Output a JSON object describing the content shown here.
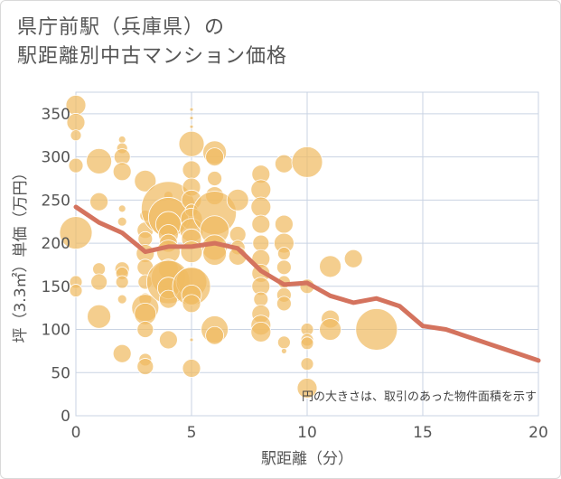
{
  "title_lines": [
    "県庁前駅（兵庫県）の",
    "駅距離別中古マンション価格"
  ],
  "colors": {
    "bubble": "#f0bb63",
    "line": "#d4735e",
    "grid": "#c9d3e3",
    "plot_bg": "#ffffff"
  },
  "chart_data": {
    "type": "scatter",
    "xlabel": "駅距離（分）",
    "ylabel": "坪（3.3㎡）単価（万円）",
    "xlim": [
      0,
      20
    ],
    "ylim": [
      0,
      375
    ],
    "xticks": [
      0,
      5,
      10,
      15,
      20
    ],
    "yticks": [
      0,
      50,
      100,
      150,
      200,
      250,
      300,
      350
    ],
    "grid": true,
    "note": "円の大きさは、取引のあった物件面積を示す",
    "bubbles": [
      {
        "x": 0,
        "y": 360,
        "r": 11
      },
      {
        "x": 0,
        "y": 340,
        "r": 10
      },
      {
        "x": 0,
        "y": 325,
        "r": 6
      },
      {
        "x": 0,
        "y": 290,
        "r": 8
      },
      {
        "x": 0,
        "y": 212,
        "r": 18
      },
      {
        "x": 0,
        "y": 155,
        "r": 7
      },
      {
        "x": 0,
        "y": 145,
        "r": 7
      },
      {
        "x": 1,
        "y": 295,
        "r": 14
      },
      {
        "x": 1,
        "y": 248,
        "r": 10
      },
      {
        "x": 1,
        "y": 170,
        "r": 7
      },
      {
        "x": 1,
        "y": 155,
        "r": 9
      },
      {
        "x": 1,
        "y": 115,
        "r": 13
      },
      {
        "x": 2,
        "y": 320,
        "r": 4
      },
      {
        "x": 2,
        "y": 310,
        "r": 6
      },
      {
        "x": 2,
        "y": 300,
        "r": 9
      },
      {
        "x": 2,
        "y": 283,
        "r": 10
      },
      {
        "x": 2,
        "y": 240,
        "r": 4
      },
      {
        "x": 2,
        "y": 225,
        "r": 5
      },
      {
        "x": 2,
        "y": 170,
        "r": 8
      },
      {
        "x": 2,
        "y": 165,
        "r": 7
      },
      {
        "x": 2,
        "y": 155,
        "r": 7
      },
      {
        "x": 2,
        "y": 135,
        "r": 5
      },
      {
        "x": 2,
        "y": 72,
        "r": 10
      },
      {
        "x": 3,
        "y": 272,
        "r": 12
      },
      {
        "x": 3,
        "y": 232,
        "r": 6
      },
      {
        "x": 3,
        "y": 215,
        "r": 9
      },
      {
        "x": 3,
        "y": 205,
        "r": 8
      },
      {
        "x": 3,
        "y": 188,
        "r": 10
      },
      {
        "x": 3,
        "y": 172,
        "r": 9
      },
      {
        "x": 3,
        "y": 155,
        "r": 8
      },
      {
        "x": 3,
        "y": 135,
        "r": 7
      },
      {
        "x": 3,
        "y": 125,
        "r": 15
      },
      {
        "x": 3,
        "y": 118,
        "r": 12
      },
      {
        "x": 3,
        "y": 100,
        "r": 9
      },
      {
        "x": 3,
        "y": 65,
        "r": 7
      },
      {
        "x": 3,
        "y": 57,
        "r": 9
      },
      {
        "x": 4,
        "y": 255,
        "r": 5
      },
      {
        "x": 4,
        "y": 240,
        "r": 30
      },
      {
        "x": 4,
        "y": 230,
        "r": 22
      },
      {
        "x": 4,
        "y": 222,
        "r": 14
      },
      {
        "x": 4,
        "y": 210,
        "r": 11
      },
      {
        "x": 4,
        "y": 200,
        "r": 10
      },
      {
        "x": 4,
        "y": 190,
        "r": 13
      },
      {
        "x": 4,
        "y": 170,
        "r": 11
      },
      {
        "x": 4,
        "y": 160,
        "r": 19
      },
      {
        "x": 4,
        "y": 155,
        "r": 24
      },
      {
        "x": 4,
        "y": 148,
        "r": 12
      },
      {
        "x": 4,
        "y": 135,
        "r": 10
      },
      {
        "x": 4,
        "y": 88,
        "r": 10
      },
      {
        "x": 5,
        "y": 355,
        "r": 2
      },
      {
        "x": 5,
        "y": 345,
        "r": 2
      },
      {
        "x": 5,
        "y": 335,
        "r": 2
      },
      {
        "x": 5,
        "y": 315,
        "r": 14
      },
      {
        "x": 5,
        "y": 285,
        "r": 10
      },
      {
        "x": 5,
        "y": 265,
        "r": 10
      },
      {
        "x": 5,
        "y": 250,
        "r": 11
      },
      {
        "x": 5,
        "y": 238,
        "r": 7
      },
      {
        "x": 5,
        "y": 228,
        "r": 12
      },
      {
        "x": 5,
        "y": 215,
        "r": 13
      },
      {
        "x": 5,
        "y": 205,
        "r": 11
      },
      {
        "x": 5,
        "y": 190,
        "r": 12
      },
      {
        "x": 5,
        "y": 155,
        "r": 17
      },
      {
        "x": 5,
        "y": 150,
        "r": 21
      },
      {
        "x": 5,
        "y": 140,
        "r": 11
      },
      {
        "x": 5,
        "y": 130,
        "r": 10
      },
      {
        "x": 5,
        "y": 88,
        "r": 2
      },
      {
        "x": 5,
        "y": 55,
        "r": 10
      },
      {
        "x": 6,
        "y": 305,
        "r": 13
      },
      {
        "x": 6,
        "y": 300,
        "r": 10
      },
      {
        "x": 6,
        "y": 275,
        "r": 8
      },
      {
        "x": 6,
        "y": 255,
        "r": 10
      },
      {
        "x": 6,
        "y": 235,
        "r": 24
      },
      {
        "x": 6,
        "y": 215,
        "r": 16
      },
      {
        "x": 6,
        "y": 195,
        "r": 14
      },
      {
        "x": 6,
        "y": 188,
        "r": 13
      },
      {
        "x": 6,
        "y": 100,
        "r": 15
      },
      {
        "x": 6,
        "y": 93,
        "r": 10
      },
      {
        "x": 7,
        "y": 250,
        "r": 12
      },
      {
        "x": 7,
        "y": 210,
        "r": 9
      },
      {
        "x": 7,
        "y": 195,
        "r": 8
      },
      {
        "x": 7,
        "y": 185,
        "r": 10
      },
      {
        "x": 8,
        "y": 280,
        "r": 10
      },
      {
        "x": 8,
        "y": 262,
        "r": 11
      },
      {
        "x": 8,
        "y": 242,
        "r": 11
      },
      {
        "x": 8,
        "y": 222,
        "r": 10
      },
      {
        "x": 8,
        "y": 200,
        "r": 9
      },
      {
        "x": 8,
        "y": 182,
        "r": 10
      },
      {
        "x": 8,
        "y": 165,
        "r": 10
      },
      {
        "x": 8,
        "y": 150,
        "r": 10
      },
      {
        "x": 8,
        "y": 135,
        "r": 8
      },
      {
        "x": 8,
        "y": 118,
        "r": 10
      },
      {
        "x": 8,
        "y": 105,
        "r": 11
      },
      {
        "x": 8,
        "y": 97,
        "r": 11
      },
      {
        "x": 9,
        "y": 292,
        "r": 10
      },
      {
        "x": 9,
        "y": 222,
        "r": 10
      },
      {
        "x": 9,
        "y": 200,
        "r": 11
      },
      {
        "x": 9,
        "y": 188,
        "r": 7
      },
      {
        "x": 9,
        "y": 172,
        "r": 8
      },
      {
        "x": 9,
        "y": 155,
        "r": 7
      },
      {
        "x": 9,
        "y": 140,
        "r": 8
      },
      {
        "x": 9,
        "y": 130,
        "r": 8
      },
      {
        "x": 9,
        "y": 85,
        "r": 7
      },
      {
        "x": 9,
        "y": 75,
        "r": 3
      },
      {
        "x": 10,
        "y": 294,
        "r": 17
      },
      {
        "x": 10,
        "y": 150,
        "r": 8
      },
      {
        "x": 10,
        "y": 100,
        "r": 7
      },
      {
        "x": 10,
        "y": 88,
        "r": 7
      },
      {
        "x": 10,
        "y": 84,
        "r": 7
      },
      {
        "x": 10,
        "y": 60,
        "r": 7
      },
      {
        "x": 10,
        "y": 32,
        "r": 11
      },
      {
        "x": 11,
        "y": 173,
        "r": 12
      },
      {
        "x": 11,
        "y": 112,
        "r": 10
      },
      {
        "x": 11,
        "y": 100,
        "r": 12
      },
      {
        "x": 12,
        "y": 182,
        "r": 10
      },
      {
        "x": 13,
        "y": 100,
        "r": 23
      }
    ],
    "series": [
      {
        "type": "line",
        "x": [
          0,
          1,
          2,
          3,
          4,
          5,
          6,
          7,
          8,
          9,
          10,
          11,
          12,
          13,
          14,
          15,
          16,
          17,
          18,
          19,
          20
        ],
        "y": [
          242,
          224,
          212,
          190,
          196,
          196,
          200,
          194,
          168,
          152,
          154,
          139,
          131,
          136,
          127,
          104,
          100,
          91,
          82,
          73,
          64
        ]
      }
    ]
  }
}
